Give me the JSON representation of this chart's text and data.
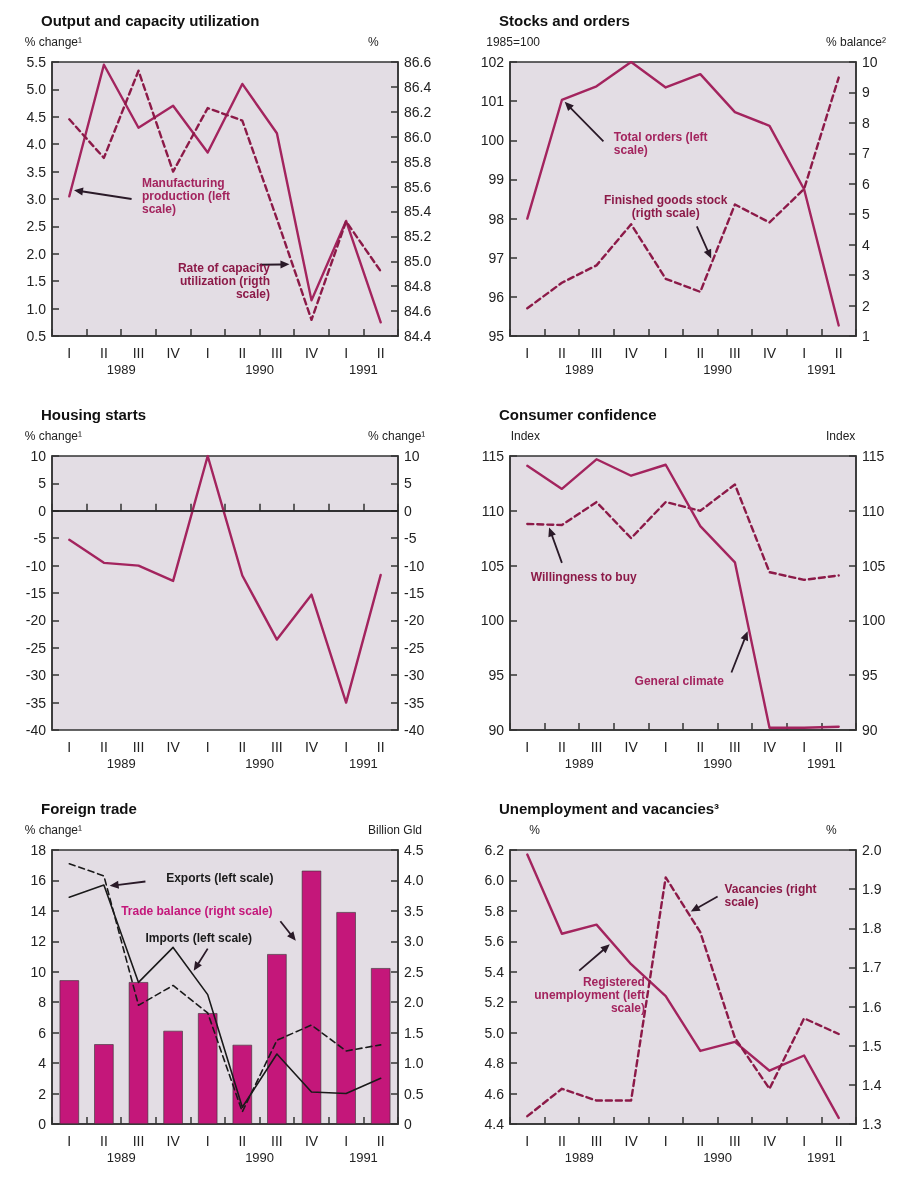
{
  "chart_data": [
    {
      "type": "line",
      "title": "Output and capacity utilization",
      "ylabel": "% change¹",
      "y2label": "%",
      "categories": [
        "I",
        "II",
        "III",
        "IV",
        "I",
        "II",
        "III",
        "IV",
        "I",
        "II"
      ],
      "series": [
        {
          "name": "Manufacturing production (left scale)",
          "color": "#a3245e",
          "line_style": "solid",
          "values": [
            3.05,
            5.45,
            4.3,
            4.7,
            3.85,
            5.1,
            4.2,
            1.15,
            2.6,
            0.75
          ]
        },
        {
          "name": "Rate of capacity utilization (rigth scale)",
          "color": "#8c1a48",
          "line_style": "dashed",
          "axis": "y2",
          "values": [
            86.14,
            85.83,
            86.53,
            85.72,
            86.23,
            86.13,
            85.34,
            84.53,
            85.32,
            84.92
          ]
        }
      ],
      "ylim": [
        0.5,
        5.5
      ],
      "yticks": [
        0.5,
        {
          "value": 1,
          "label": "1.0"
        },
        1.5,
        {
          "value": 2,
          "label": "2.0"
        },
        2.5,
        {
          "value": 3,
          "label": "3.0"
        },
        3.5,
        {
          "value": 4,
          "label": "4.0"
        },
        4.5,
        {
          "value": 5,
          "label": "5.0"
        },
        5.5
      ],
      "y2lim": [
        84.4,
        86.6
      ],
      "y2ticks": [
        84.4,
        84.6,
        84.8,
        {
          "value": 85,
          "label": "85.0"
        },
        85.2,
        85.4,
        85.6,
        85.8,
        {
          "value": 86,
          "label": "86.0"
        },
        86.2,
        86.4,
        86.6
      ],
      "annotations": [
        "1989",
        "1990",
        "1991"
      ]
    },
    {
      "type": "line",
      "title": "Stocks and orders",
      "ylabel": "1985=100",
      "y2label": "% balance²",
      "categories": [
        "I",
        "II",
        "III",
        "IV",
        "I",
        "II",
        "III",
        "IV",
        "I",
        "II"
      ],
      "series": [
        {
          "name": "Total orders (left scale)",
          "color": "#a3245e",
          "line_style": "solid",
          "values": [
            98.0,
            101.03,
            101.38,
            102.0,
            101.35,
            101.69,
            100.72,
            100.37,
            98.75,
            95.27
          ]
        },
        {
          "name": "Finished goods stock (rigth scale)",
          "color": "#8c1a48",
          "line_style": "dashed",
          "axis": "y2",
          "values": [
            1.91,
            2.75,
            3.32,
            4.67,
            2.88,
            2.45,
            5.32,
            4.73,
            5.83,
            9.49
          ]
        }
      ],
      "ylim": [
        95,
        102
      ],
      "yticks": [
        95,
        96,
        97,
        98,
        99,
        100,
        101,
        102
      ],
      "y2lim": [
        1,
        10
      ],
      "y2ticks": [
        1,
        2,
        3,
        4,
        5,
        6,
        7,
        8,
        9,
        10
      ],
      "annotations": [
        "1989",
        "1990",
        "1991"
      ]
    },
    {
      "type": "line",
      "title": "Housing starts",
      "ylabel": "% change¹",
      "y2label": "% change¹",
      "categories": [
        "I",
        "II",
        "III",
        "IV",
        "I",
        "II",
        "III",
        "IV",
        "I",
        "II"
      ],
      "series": [
        {
          "color": "#a3245e",
          "line_style": "solid",
          "values": [
            -5.3,
            -9.5,
            -10,
            -12.8,
            10,
            -11.8,
            -23.5,
            -15.3,
            -35,
            -11.7
          ]
        }
      ],
      "ylim": [
        -40,
        10
      ],
      "yticks": [
        -40,
        -35,
        -30,
        -25,
        -20,
        -15,
        -10,
        -5,
        0,
        5,
        10
      ],
      "y2lim": [
        -40,
        10
      ],
      "y2ticks": [
        -40,
        -35,
        -30,
        -25,
        -20,
        -15,
        -10,
        -5,
        0,
        5,
        10
      ],
      "ref_lines": [
        {
          "axis": "y",
          "value": 0,
          "color": "#222222"
        }
      ],
      "annotations": [
        "1989",
        "1990",
        "1991"
      ]
    },
    {
      "type": "line",
      "title": "Consumer confidence",
      "ylabel": "Index",
      "y2label": "Index",
      "categories": [
        "I",
        "II",
        "III",
        "IV",
        "I",
        "II",
        "III",
        "IV",
        "I",
        "II"
      ],
      "series": [
        {
          "name": "Willingness to buy",
          "color": "#8c1a48",
          "line_style": "dashed",
          "values": [
            108.8,
            108.7,
            110.8,
            107.5,
            110.8,
            110.0,
            112.4,
            104.4,
            103.7,
            104.1
          ]
        },
        {
          "name": "General climate",
          "color": "#a3245e",
          "line_style": "solid",
          "values": [
            114.1,
            112.0,
            114.7,
            113.2,
            114.2,
            108.6,
            105.3,
            90.2,
            90.2,
            90.3
          ]
        }
      ],
      "ylim": [
        90,
        115
      ],
      "yticks": [
        90,
        95,
        100,
        105,
        110,
        115
      ],
      "y2lim": [
        90,
        115
      ],
      "y2ticks": [
        90,
        95,
        100,
        105,
        110,
        115
      ],
      "annotations": [
        "1989",
        "1990",
        "1991"
      ]
    },
    {
      "type": "line",
      "title": "Foreign trade",
      "ylabel": "% change¹",
      "y2label": "Billion Gld",
      "categories": [
        "I",
        "II",
        "III",
        "IV",
        "I",
        "II",
        "III",
        "IV",
        "I",
        "II"
      ],
      "series": [
        {
          "name": "Trade balance (right scale)",
          "type": "bar",
          "axis": "y2",
          "color": "#c4177a",
          "values": [
            2.36,
            1.31,
            2.33,
            1.53,
            1.82,
            1.3,
            2.79,
            4.16,
            3.48,
            2.56
          ]
        },
        {
          "name": "Exports (left scale)",
          "color": "#1a1a1a",
          "line_style": "dashed",
          "values": [
            17.1,
            16.3,
            7.8,
            9.1,
            7.3,
            0.8,
            5.5,
            6.5,
            4.8,
            5.2
          ]
        },
        {
          "name": "Imports (left scale)",
          "color": "#1a1a1a",
          "line_style": "solid",
          "values": [
            14.9,
            15.7,
            9.3,
            11.6,
            8.5,
            1.1,
            4.6,
            2.1,
            2.0,
            3.0
          ]
        }
      ],
      "ylim": [
        0,
        18
      ],
      "yticks": [
        0,
        2,
        4,
        6,
        8,
        10,
        12,
        14,
        16,
        18
      ],
      "y2lim": [
        0,
        4.5
      ],
      "y2ticks": [
        0,
        0.5,
        {
          "value": 1,
          "label": "1.0"
        },
        1.5,
        {
          "value": 2,
          "label": "2.0"
        },
        2.5,
        {
          "value": 3,
          "label": "3.0"
        },
        3.5,
        {
          "value": 4,
          "label": "4.0"
        },
        4.5
      ],
      "annotations": [
        "1989",
        "1990",
        "1991"
      ]
    },
    {
      "type": "line",
      "title": "Unemployment and vacancies³",
      "ylabel": "%",
      "y2label": "%",
      "categories": [
        "I",
        "II",
        "III",
        "IV",
        "I",
        "II",
        "III",
        "IV",
        "I",
        "II"
      ],
      "series": [
        {
          "name": "Registered unemployment (left scale)",
          "color": "#a3245e",
          "line_style": "solid",
          "values": [
            6.17,
            5.65,
            5.71,
            5.45,
            5.24,
            4.88,
            4.94,
            4.75,
            4.85,
            4.44
          ]
        },
        {
          "name": "Vacancies (right scale)",
          "color": "#8c1a48",
          "line_style": "dashed",
          "axis": "y2",
          "values": [
            1.32,
            1.39,
            1.36,
            1.36,
            1.93,
            1.79,
            1.52,
            1.39,
            1.57,
            1.53
          ]
        }
      ],
      "ylim": [
        4.4,
        6.2
      ],
      "yticks": [
        4.4,
        4.6,
        4.8,
        {
          "value": 5,
          "label": "5.0"
        },
        5.2,
        5.4,
        5.6,
        5.8,
        {
          "value": 6,
          "label": "6.0"
        },
        6.2
      ],
      "y2lim": [
        1.3,
        2.0
      ],
      "y2ticks": [
        1.3,
        1.4,
        1.5,
        1.6,
        1.7,
        1.8,
        1.9,
        {
          "value": 2,
          "label": "2.0"
        }
      ],
      "annotations": [
        "1989",
        "1990",
        "1991"
      ]
    }
  ]
}
